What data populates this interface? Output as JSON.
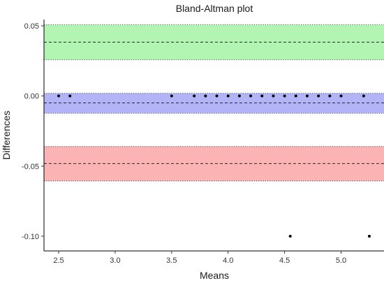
{
  "chart_data": {
    "type": "scatter",
    "title": "Bland-Altman plot",
    "xlabel": "Means",
    "ylabel": "Differences",
    "xlim": [
      2.37,
      5.38
    ],
    "ylim": [
      -0.1105,
      0.0545
    ],
    "xticks": [
      2.5,
      3.0,
      3.5,
      4.0,
      4.5,
      5.0
    ],
    "xtick_labels": [
      "2.5",
      "3.0",
      "3.5",
      "4.0",
      "4.5",
      "5.0"
    ],
    "yticks": [
      0.05,
      0.0,
      -0.05,
      -0.1
    ],
    "ytick_labels": [
      "0.05",
      "0.00",
      "-0.05",
      "-0.10"
    ],
    "grid": false,
    "bands": [
      {
        "name": "upper limit of agreement",
        "center": 0.0383,
        "ci": [
          0.0258,
          0.0507
        ],
        "color": "#b2f5b2"
      },
      {
        "name": "mean difference",
        "center": -0.005,
        "ci": [
          -0.0123,
          0.0019
        ],
        "color": "#b3b3f8"
      },
      {
        "name": "lower limit of agreement",
        "center": -0.0482,
        "ci": [
          -0.0606,
          -0.036
        ],
        "color": "#fbb3b3"
      }
    ],
    "points": [
      {
        "x": 2.5,
        "y": 0.0
      },
      {
        "x": 2.6,
        "y": 0.0
      },
      {
        "x": 3.5,
        "y": 0.0
      },
      {
        "x": 3.7,
        "y": 0.0
      },
      {
        "x": 3.8,
        "y": 0.0
      },
      {
        "x": 3.9,
        "y": 0.0
      },
      {
        "x": 4.0,
        "y": 0.0
      },
      {
        "x": 4.1,
        "y": 0.0
      },
      {
        "x": 4.2,
        "y": 0.0
      },
      {
        "x": 4.3,
        "y": 0.0
      },
      {
        "x": 4.4,
        "y": 0.0
      },
      {
        "x": 4.5,
        "y": 0.0
      },
      {
        "x": 4.6,
        "y": 0.0
      },
      {
        "x": 4.7,
        "y": 0.0
      },
      {
        "x": 4.8,
        "y": 0.0
      },
      {
        "x": 4.9,
        "y": 0.0
      },
      {
        "x": 5.0,
        "y": 0.0
      },
      {
        "x": 5.2,
        "y": 0.0
      },
      {
        "x": 4.55,
        "y": -0.1
      },
      {
        "x": 5.25,
        "y": -0.1
      }
    ]
  }
}
